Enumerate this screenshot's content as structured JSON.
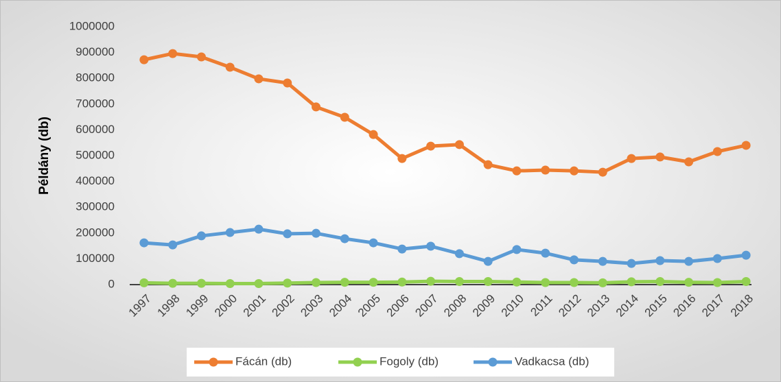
{
  "chart_data": {
    "type": "line",
    "y_label": "Példány (db)",
    "categories": [
      "1997",
      "1998",
      "1999",
      "2000",
      "2001",
      "2002",
      "2003",
      "2004",
      "2005",
      "2006",
      "2007",
      "2008",
      "2009",
      "2010",
      "2011",
      "2012",
      "2013",
      "2014",
      "2015",
      "2016",
      "2017",
      "2018"
    ],
    "series": [
      {
        "name": "Fácán (db)",
        "color": "#ed7d31",
        "values": [
          872000,
          896000,
          883000,
          843000,
          798000,
          782000,
          689000,
          649000,
          582000,
          489000,
          537000,
          543000,
          465000,
          441000,
          444000,
          441000,
          436000,
          489000,
          495000,
          476000,
          516000,
          540000
        ]
      },
      {
        "name": "Fogoly (db)",
        "color": "#92d050",
        "values": [
          7000,
          5000,
          5000,
          4000,
          4000,
          6000,
          8000,
          9000,
          9000,
          10000,
          13000,
          12000,
          12000,
          10000,
          8000,
          8000,
          7000,
          11000,
          12000,
          9000,
          8000,
          12000
        ]
      },
      {
        "name": "Vadkacsa (db)",
        "color": "#5b9bd5",
        "values": [
          162000,
          154000,
          189000,
          202000,
          215000,
          197000,
          199000,
          178000,
          162000,
          138000,
          149000,
          120000,
          90000,
          136000,
          122000,
          96000,
          90000,
          82000,
          93000,
          90000,
          101000,
          114000
        ]
      }
    ],
    "ylim": [
      0,
      1000000
    ],
    "yticks": [
      0,
      100000,
      200000,
      300000,
      400000,
      500000,
      600000,
      700000,
      800000,
      900000,
      1000000
    ],
    "grid": false,
    "legend": "bottom"
  }
}
